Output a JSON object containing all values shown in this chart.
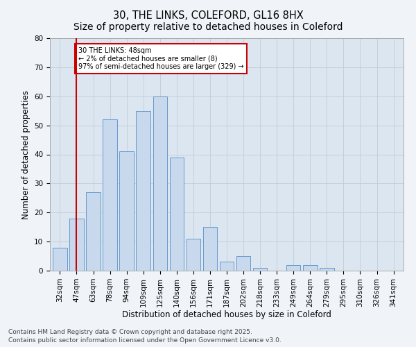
{
  "title1": "30, THE LINKS, COLEFORD, GL16 8HX",
  "title2": "Size of property relative to detached houses in Coleford",
  "xlabel": "Distribution of detached houses by size in Coleford",
  "ylabel": "Number of detached properties",
  "categories": [
    "32sqm",
    "47sqm",
    "63sqm",
    "78sqm",
    "94sqm",
    "109sqm",
    "125sqm",
    "140sqm",
    "156sqm",
    "171sqm",
    "187sqm",
    "202sqm",
    "218sqm",
    "233sqm",
    "249sqm",
    "264sqm",
    "279sqm",
    "295sqm",
    "310sqm",
    "326sqm",
    "341sqm"
  ],
  "values": [
    8,
    18,
    27,
    52,
    41,
    55,
    60,
    39,
    11,
    15,
    3,
    5,
    1,
    0,
    2,
    2,
    1,
    0,
    0,
    0,
    0
  ],
  "bar_color": "#c8d9ee",
  "bar_edge_color": "#6699cc",
  "grid_color": "#c0ccd8",
  "background_color": "#dce6f0",
  "fig_background": "#f0f4f8",
  "annotation_text": "30 THE LINKS: 48sqm\n← 2% of detached houses are smaller (8)\n97% of semi-detached houses are larger (329) →",
  "vline_color": "#cc0000",
  "vline_x": 1,
  "ylim": [
    0,
    80
  ],
  "yticks": [
    0,
    10,
    20,
    30,
    40,
    50,
    60,
    70,
    80
  ],
  "footer": "Contains HM Land Registry data © Crown copyright and database right 2025.\nContains public sector information licensed under the Open Government Licence v3.0.",
  "title_fontsize": 10.5,
  "axis_label_fontsize": 8.5,
  "tick_fontsize": 7.5,
  "footer_fontsize": 6.5
}
